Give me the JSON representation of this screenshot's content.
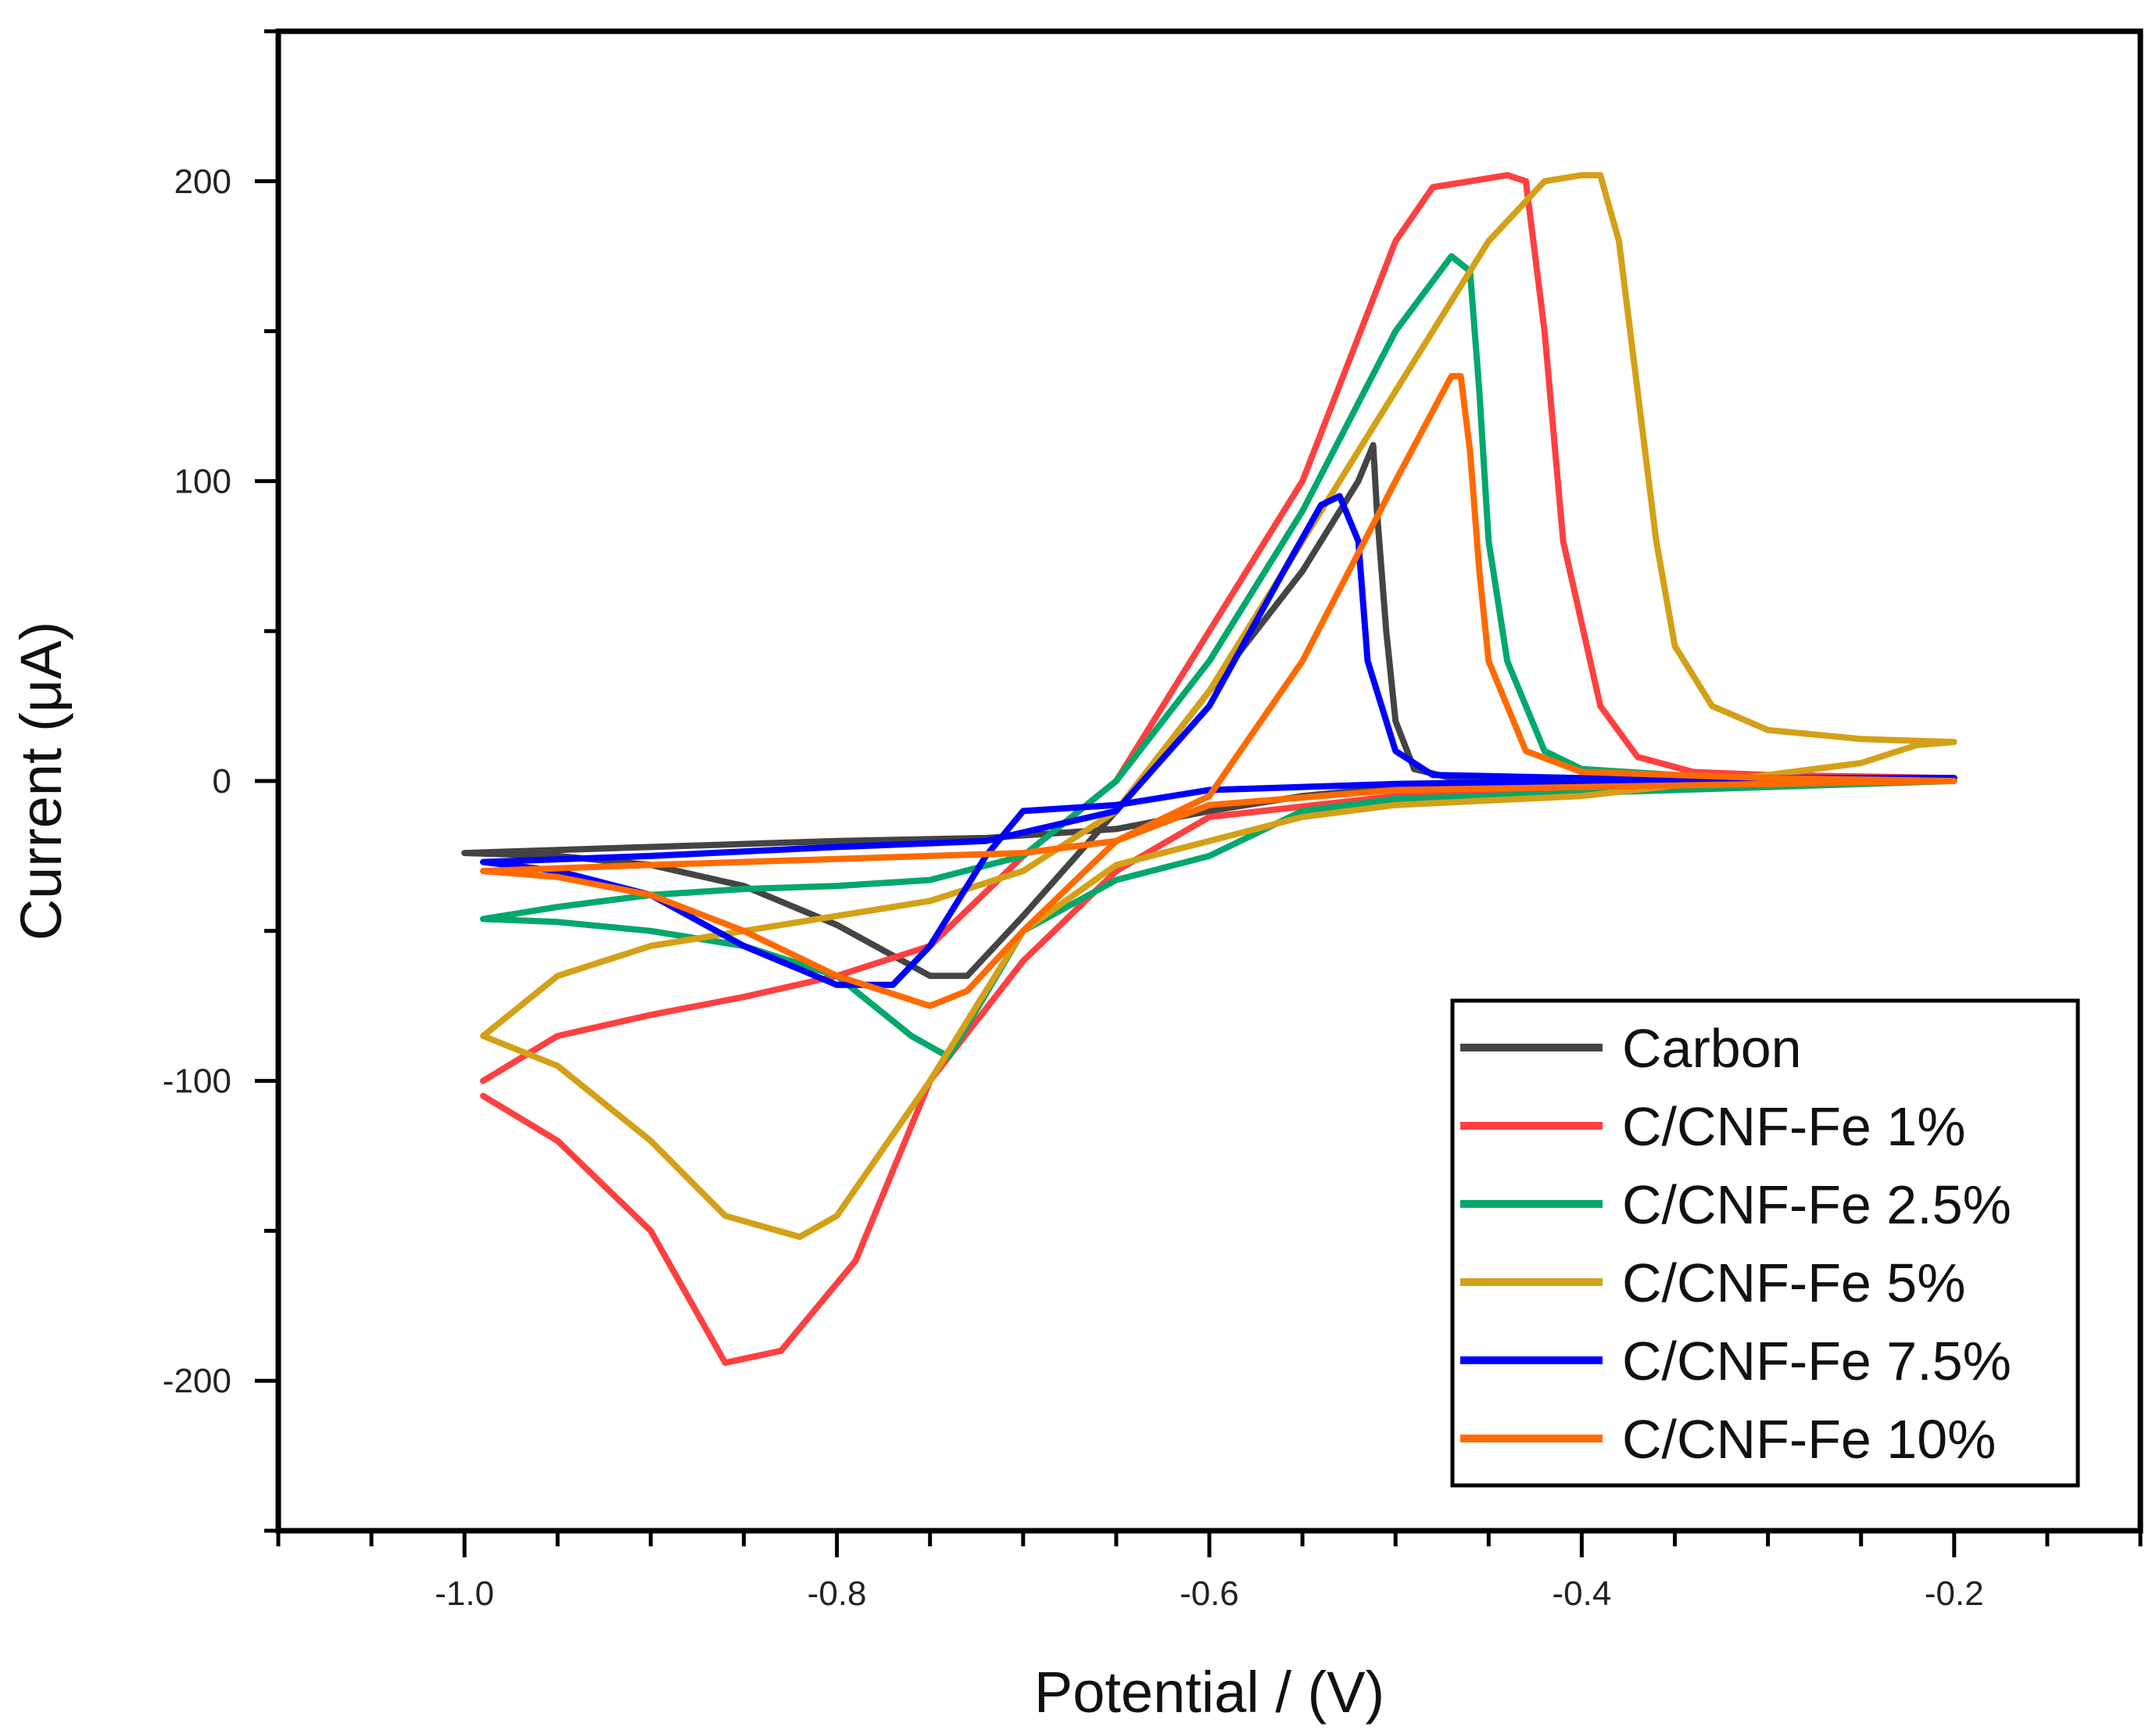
{
  "chart_data": {
    "type": "line",
    "title": "",
    "xlabel": "Potential / (V)",
    "ylabel": "Current (μA)",
    "xlim": [
      -1.1,
      -0.1
    ],
    "ylim": [
      -250,
      250
    ],
    "xticks": [
      -1.0,
      -0.8,
      -0.6,
      -0.4,
      -0.2
    ],
    "xtick_labels": [
      "-1.0",
      "-0.8",
      "-0.6",
      "-0.4",
      "-0.2"
    ],
    "yticks": [
      -200,
      -100,
      0,
      100,
      200
    ],
    "ytick_labels": [
      "-200",
      "-100",
      "0",
      "100",
      "200"
    ],
    "grid": false,
    "legend_position": "bottom-right",
    "series": [
      {
        "name": "Carbon",
        "color": "#444444",
        "points": [
          [
            -1.0,
            -24
          ],
          [
            -0.9,
            -22
          ],
          [
            -0.8,
            -20
          ],
          [
            -0.72,
            -19
          ],
          [
            -0.65,
            -16
          ],
          [
            -0.6,
            -10
          ],
          [
            -0.55,
            -5
          ],
          [
            -0.5,
            -2
          ],
          [
            -0.4,
            0
          ],
          [
            -0.3,
            0
          ],
          [
            -0.2,
            1
          ],
          [
            -0.3,
            1
          ],
          [
            -0.4,
            1
          ],
          [
            -0.47,
            1
          ],
          [
            -0.49,
            4
          ],
          [
            -0.5,
            20
          ],
          [
            -0.505,
            50
          ],
          [
            -0.51,
            90
          ],
          [
            -0.512,
            112
          ],
          [
            -0.52,
            100
          ],
          [
            -0.55,
            70
          ],
          [
            -0.6,
            30
          ],
          [
            -0.65,
            -10
          ],
          [
            -0.7,
            -45
          ],
          [
            -0.73,
            -65
          ],
          [
            -0.75,
            -65
          ],
          [
            -0.8,
            -48
          ],
          [
            -0.85,
            -35
          ],
          [
            -0.9,
            -28
          ],
          [
            -0.95,
            -25
          ],
          [
            -1.0,
            -24
          ]
        ]
      },
      {
        "name": "C/CNF-Fe 1%",
        "color": "#ff4040",
        "points": [
          [
            -0.99,
            -100
          ],
          [
            -0.95,
            -85
          ],
          [
            -0.9,
            -78
          ],
          [
            -0.85,
            -72
          ],
          [
            -0.8,
            -65
          ],
          [
            -0.75,
            -55
          ],
          [
            -0.7,
            -25
          ],
          [
            -0.65,
            0
          ],
          [
            -0.6,
            50
          ],
          [
            -0.55,
            100
          ],
          [
            -0.5,
            180
          ],
          [
            -0.48,
            198
          ],
          [
            -0.44,
            202
          ],
          [
            -0.43,
            200
          ],
          [
            -0.42,
            150
          ],
          [
            -0.41,
            80
          ],
          [
            -0.39,
            25
          ],
          [
            -0.37,
            8
          ],
          [
            -0.34,
            3
          ],
          [
            -0.3,
            2
          ],
          [
            -0.2,
            1
          ],
          [
            -0.3,
            0
          ],
          [
            -0.4,
            -2
          ],
          [
            -0.5,
            -5
          ],
          [
            -0.6,
            -12
          ],
          [
            -0.65,
            -30
          ],
          [
            -0.7,
            -60
          ],
          [
            -0.75,
            -100
          ],
          [
            -0.79,
            -160
          ],
          [
            -0.83,
            -190
          ],
          [
            -0.86,
            -194
          ],
          [
            -0.9,
            -150
          ],
          [
            -0.95,
            -120
          ],
          [
            -0.99,
            -105
          ]
        ]
      },
      {
        "name": "C/CNF-Fe 2.5%",
        "color": "#00a86b",
        "points": [
          [
            -0.99,
            -46
          ],
          [
            -0.95,
            -42
          ],
          [
            -0.9,
            -38
          ],
          [
            -0.85,
            -36
          ],
          [
            -0.8,
            -35
          ],
          [
            -0.75,
            -33
          ],
          [
            -0.7,
            -25
          ],
          [
            -0.65,
            0
          ],
          [
            -0.6,
            40
          ],
          [
            -0.55,
            90
          ],
          [
            -0.5,
            150
          ],
          [
            -0.47,
            175
          ],
          [
            -0.46,
            170
          ],
          [
            -0.455,
            130
          ],
          [
            -0.45,
            80
          ],
          [
            -0.44,
            40
          ],
          [
            -0.42,
            10
          ],
          [
            -0.4,
            4
          ],
          [
            -0.35,
            2
          ],
          [
            -0.3,
            1
          ],
          [
            -0.2,
            0
          ],
          [
            -0.3,
            -2
          ],
          [
            -0.4,
            -4
          ],
          [
            -0.5,
            -6
          ],
          [
            -0.55,
            -10
          ],
          [
            -0.6,
            -25
          ],
          [
            -0.65,
            -33
          ],
          [
            -0.7,
            -50
          ],
          [
            -0.74,
            -92
          ],
          [
            -0.76,
            -85
          ],
          [
            -0.8,
            -65
          ],
          [
            -0.85,
            -55
          ],
          [
            -0.9,
            -50
          ],
          [
            -0.95,
            -47
          ],
          [
            -0.99,
            -46
          ]
        ]
      },
      {
        "name": "C/CNF-Fe 5%",
        "color": "#d4a017",
        "points": [
          [
            -0.99,
            -85
          ],
          [
            -0.95,
            -65
          ],
          [
            -0.9,
            -55
          ],
          [
            -0.85,
            -50
          ],
          [
            -0.8,
            -45
          ],
          [
            -0.75,
            -40
          ],
          [
            -0.7,
            -30
          ],
          [
            -0.65,
            -10
          ],
          [
            -0.6,
            30
          ],
          [
            -0.55,
            80
          ],
          [
            -0.5,
            130
          ],
          [
            -0.45,
            180
          ],
          [
            -0.42,
            200
          ],
          [
            -0.4,
            202
          ],
          [
            -0.39,
            202
          ],
          [
            -0.38,
            180
          ],
          [
            -0.37,
            130
          ],
          [
            -0.36,
            80
          ],
          [
            -0.35,
            45
          ],
          [
            -0.33,
            25
          ],
          [
            -0.3,
            17
          ],
          [
            -0.25,
            14
          ],
          [
            -0.2,
            13
          ],
          [
            -0.22,
            12
          ],
          [
            -0.25,
            6
          ],
          [
            -0.3,
            2
          ],
          [
            -0.4,
            -5
          ],
          [
            -0.5,
            -8
          ],
          [
            -0.55,
            -12
          ],
          [
            -0.6,
            -20
          ],
          [
            -0.65,
            -28
          ],
          [
            -0.7,
            -50
          ],
          [
            -0.75,
            -100
          ],
          [
            -0.8,
            -145
          ],
          [
            -0.82,
            -152
          ],
          [
            -0.86,
            -145
          ],
          [
            -0.9,
            -120
          ],
          [
            -0.95,
            -95
          ],
          [
            -0.99,
            -85
          ]
        ]
      },
      {
        "name": "C/CNF-Fe 7.5%",
        "color": "#0000ff",
        "points": [
          [
            -0.99,
            -27
          ],
          [
            -0.9,
            -25
          ],
          [
            -0.8,
            -22
          ],
          [
            -0.72,
            -20
          ],
          [
            -0.65,
            -10
          ],
          [
            -0.6,
            25
          ],
          [
            -0.56,
            70
          ],
          [
            -0.54,
            92
          ],
          [
            -0.53,
            95
          ],
          [
            -0.52,
            80
          ],
          [
            -0.515,
            40
          ],
          [
            -0.5,
            10
          ],
          [
            -0.48,
            2
          ],
          [
            -0.4,
            1
          ],
          [
            -0.3,
            1
          ],
          [
            -0.2,
            1
          ],
          [
            -0.3,
            0
          ],
          [
            -0.4,
            0
          ],
          [
            -0.5,
            -1
          ],
          [
            -0.6,
            -3
          ],
          [
            -0.65,
            -8
          ],
          [
            -0.7,
            -10
          ],
          [
            -0.72,
            -25
          ],
          [
            -0.75,
            -55
          ],
          [
            -0.77,
            -68
          ],
          [
            -0.8,
            -68
          ],
          [
            -0.85,
            -55
          ],
          [
            -0.9,
            -38
          ],
          [
            -0.95,
            -30
          ],
          [
            -0.99,
            -27
          ]
        ]
      },
      {
        "name": "C/CNF-Fe 10%",
        "color": "#ff6a00",
        "points": [
          [
            -0.99,
            -30
          ],
          [
            -0.9,
            -28
          ],
          [
            -0.8,
            -26
          ],
          [
            -0.7,
            -24
          ],
          [
            -0.65,
            -20
          ],
          [
            -0.6,
            -5
          ],
          [
            -0.55,
            40
          ],
          [
            -0.5,
            100
          ],
          [
            -0.47,
            135
          ],
          [
            -0.465,
            135
          ],
          [
            -0.46,
            110
          ],
          [
            -0.455,
            70
          ],
          [
            -0.45,
            40
          ],
          [
            -0.43,
            10
          ],
          [
            -0.4,
            3
          ],
          [
            -0.3,
            1
          ],
          [
            -0.2,
            0
          ],
          [
            -0.3,
            -1
          ],
          [
            -0.4,
            -2
          ],
          [
            -0.5,
            -3
          ],
          [
            -0.6,
            -8
          ],
          [
            -0.65,
            -20
          ],
          [
            -0.7,
            -50
          ],
          [
            -0.73,
            -70
          ],
          [
            -0.75,
            -75
          ],
          [
            -0.8,
            -65
          ],
          [
            -0.85,
            -50
          ],
          [
            -0.9,
            -38
          ],
          [
            -0.95,
            -32
          ],
          [
            -0.99,
            -30
          ]
        ]
      }
    ]
  }
}
